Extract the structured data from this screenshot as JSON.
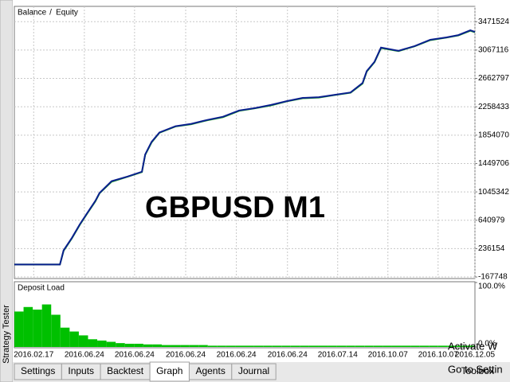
{
  "chart_data": [
    {
      "type": "line",
      "annotation": "GBPUSD M1",
      "legend_separator": "/",
      "grid": true,
      "x": [
        0,
        9.9,
        10.7,
        12.5,
        14.2,
        15.9,
        17.6,
        18.5,
        21.1,
        24.6,
        27.7,
        28.4,
        29.8,
        31.5,
        35,
        38.4,
        41.9,
        45.3,
        48.8,
        52.2,
        55.7,
        59.2,
        62.6,
        66.1,
        69.6,
        73,
        75.6,
        76.5,
        78.2,
        79.6,
        83.4,
        86.9,
        90.3,
        93.8,
        96.4,
        99,
        100
      ],
      "series": [
        {
          "name": "Balance",
          "color": "#0a1f8f",
          "values": [
            10000,
            10000,
            212000,
            391000,
            582000,
            750000,
            918000,
            1030000,
            1198000,
            1265000,
            1332000,
            1579000,
            1758000,
            1892000,
            1982000,
            2015000,
            2071000,
            2116000,
            2206000,
            2239000,
            2284000,
            2340000,
            2385000,
            2396000,
            2430000,
            2463000,
            2598000,
            2766000,
            2900000,
            3102000,
            3057000,
            3124000,
            3214000,
            3248000,
            3281000,
            3348000,
            3326000
          ]
        },
        {
          "name": "Equity",
          "color": "#1fa51f",
          "values": [
            10000,
            10000,
            205000,
            385000,
            575000,
            745000,
            910000,
            1025000,
            1190000,
            1262000,
            1328000,
            1572000,
            1750000,
            1888000,
            1978000,
            2010000,
            2066000,
            2110000,
            2200000,
            2236000,
            2278000,
            2336000,
            2380000,
            2390000,
            2426000,
            2458000,
            2590000,
            2760000,
            2895000,
            3095000,
            3052000,
            3120000,
            3208000,
            3244000,
            3276000,
            3342000,
            3320000
          ]
        }
      ],
      "xlim": [
        0,
        100
      ],
      "xticks": [
        {
          "value": 4.2,
          "label": "2016.02.17"
        },
        {
          "value": 15.2,
          "label": "2016.06.24"
        },
        {
          "value": 26.1,
          "label": "2016.06.24"
        },
        {
          "value": 37.2,
          "label": "2016.06.24"
        },
        {
          "value": 48.2,
          "label": "2016.06.24"
        },
        {
          "value": 59.3,
          "label": "2016.06.24"
        },
        {
          "value": 70.2,
          "label": "2016.07.14"
        },
        {
          "value": 81.1,
          "label": "2016.10.07"
        },
        {
          "value": 92,
          "label": "2016.10.07"
        },
        {
          "value": 100,
          "label": "2016.12.05"
        }
      ],
      "ylim": [
        -190000,
        3690000
      ],
      "yticks": [
        3471524,
        3067116,
        2662797,
        2258433,
        1854070,
        1449706,
        1045342,
        640979,
        236154,
        -167748
      ]
    },
    {
      "type": "bar",
      "title": "Deposit Load",
      "color": "#00c000",
      "values": [
        55,
        62,
        58,
        66,
        50,
        30,
        24,
        18,
        12,
        10,
        8,
        6,
        5,
        5,
        4,
        4,
        3,
        3,
        3,
        3,
        3,
        2,
        2,
        2,
        2,
        2,
        2,
        2,
        2,
        2,
        2,
        2,
        2,
        2,
        2,
        2,
        2,
        2,
        2,
        2,
        2,
        2,
        2,
        2,
        2,
        2,
        2,
        2,
        2,
        2
      ],
      "xlim": [
        0,
        50
      ],
      "ylim": [
        0,
        100
      ],
      "yticks": [
        {
          "value": 100,
          "label": "100.0%"
        },
        {
          "value": 0,
          "label": "0.0%"
        }
      ]
    }
  ],
  "ui": {
    "side_panel": "Strategy Tester",
    "tabs": [
      "Settings",
      "Inputs",
      "Backtest",
      "Graph",
      "Agents",
      "Journal"
    ],
    "active_tab": 3,
    "toolbox": "Toolbox",
    "watermark": [
      "Activate W",
      "Go to Settin"
    ]
  }
}
